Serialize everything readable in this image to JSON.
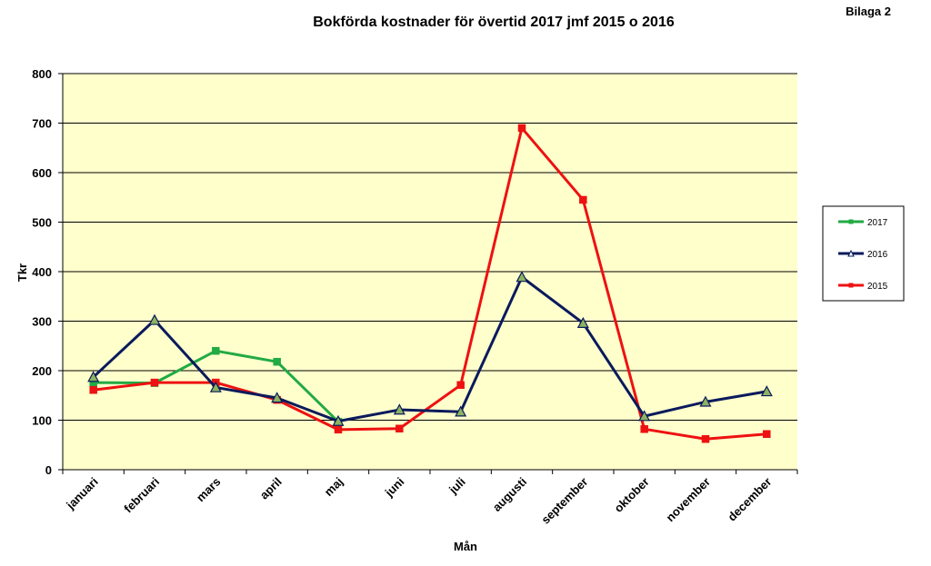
{
  "annex_label": "Bilaga 2",
  "chart_data": {
    "type": "line",
    "title": "Bokförda kostnader för övertid 2017 jmf 2015 o 2016",
    "xlabel": "Mån",
    "ylabel": "Tkr",
    "ylim": [
      0,
      800
    ],
    "yticks": [
      0,
      100,
      200,
      300,
      400,
      500,
      600,
      700,
      800
    ],
    "grid": true,
    "legend_position": "right",
    "plot_background": "#FFFFCC",
    "categories": [
      "januari",
      "februari",
      "mars",
      "april",
      "maj",
      "juni",
      "juli",
      "augusti",
      "september",
      "oktober",
      "november",
      "december"
    ],
    "series": [
      {
        "name": "2017",
        "color": "#22AA44",
        "marker": "square",
        "values": [
          176,
          175,
          240,
          218,
          97,
          null,
          null,
          null,
          null,
          null,
          null,
          null
        ]
      },
      {
        "name": "2016",
        "color": "#0A1A5C",
        "marker": "triangle",
        "values": [
          187,
          302,
          166,
          145,
          98,
          121,
          117,
          389,
          296,
          108,
          137,
          158
        ]
      },
      {
        "name": "2015",
        "color": "#EE1111",
        "marker": "square",
        "values": [
          161,
          176,
          176,
          141,
          81,
          83,
          171,
          690,
          545,
          82,
          62,
          72
        ]
      }
    ]
  }
}
